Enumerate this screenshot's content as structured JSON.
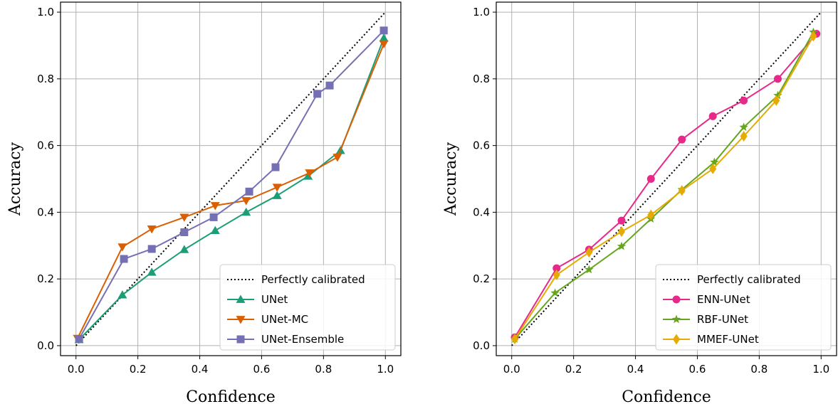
{
  "chart_data": [
    {
      "type": "line",
      "xlabel": "Confidence",
      "ylabel": "Accuracy",
      "xlim": [
        -0.05,
        1.05
      ],
      "ylim": [
        -0.03,
        1.03
      ],
      "xticks": [
        0.0,
        0.2,
        0.4,
        0.6,
        0.8,
        1.0
      ],
      "yticks": [
        0.0,
        0.2,
        0.4,
        0.6,
        0.8,
        1.0
      ],
      "tick_labels": [
        "0.0",
        "0.2",
        "0.4",
        "0.6",
        "0.8",
        "1.0"
      ],
      "grid": true,
      "legend_position": "bottom-right",
      "reference": {
        "name": "Perfectly calibrated",
        "x": [
          0,
          1
        ],
        "y": [
          0,
          1
        ],
        "color": "#000000",
        "style": "dotted"
      },
      "series": [
        {
          "name": "UNet",
          "color": "#1b9e77",
          "marker": "triangle-up",
          "x": [
            0.01,
            0.15,
            0.245,
            0.35,
            0.45,
            0.55,
            0.65,
            0.75,
            0.855,
            0.995
          ],
          "y": [
            0.018,
            0.152,
            0.22,
            0.288,
            0.345,
            0.4,
            0.45,
            0.508,
            0.585,
            0.922
          ]
        },
        {
          "name": "UNet-MC",
          "color": "#d95f02",
          "marker": "triangle-down",
          "x": [
            0.005,
            0.15,
            0.245,
            0.35,
            0.45,
            0.55,
            0.65,
            0.755,
            0.845,
            0.995
          ],
          "y": [
            0.022,
            0.296,
            0.35,
            0.385,
            0.42,
            0.435,
            0.475,
            0.518,
            0.565,
            0.905
          ]
        },
        {
          "name": "UNet-Ensemble",
          "color": "#7570b3",
          "marker": "square",
          "x": [
            0.01,
            0.155,
            0.245,
            0.35,
            0.445,
            0.56,
            0.645,
            0.78,
            0.82,
            0.995
          ],
          "y": [
            0.02,
            0.26,
            0.29,
            0.34,
            0.385,
            0.462,
            0.535,
            0.755,
            0.78,
            0.945
          ]
        }
      ]
    },
    {
      "type": "line",
      "xlabel": "Confidence",
      "ylabel": "Accuracy",
      "xlim": [
        -0.05,
        1.05
      ],
      "ylim": [
        -0.03,
        1.03
      ],
      "xticks": [
        0.0,
        0.2,
        0.4,
        0.6,
        0.8,
        1.0
      ],
      "yticks": [
        0.0,
        0.2,
        0.4,
        0.6,
        0.8,
        1.0
      ],
      "tick_labels": [
        "0.0",
        "0.2",
        "0.4",
        "0.6",
        "0.8",
        "1.0"
      ],
      "grid": true,
      "legend_position": "bottom-right",
      "reference": {
        "name": "Perfectly calibrated",
        "x": [
          0,
          1
        ],
        "y": [
          0,
          1
        ],
        "color": "#000000",
        "style": "dotted"
      },
      "series": [
        {
          "name": "ENN-UNet",
          "color": "#e7298a",
          "marker": "circle",
          "x": [
            0.01,
            0.145,
            0.25,
            0.355,
            0.45,
            0.55,
            0.65,
            0.75,
            0.86,
            0.985
          ],
          "y": [
            0.025,
            0.232,
            0.288,
            0.375,
            0.5,
            0.618,
            0.688,
            0.735,
            0.8,
            0.935
          ]
        },
        {
          "name": "RBF-UNet",
          "color": "#66a61e",
          "marker": "star",
          "x": [
            0.01,
            0.14,
            0.25,
            0.355,
            0.45,
            0.55,
            0.655,
            0.75,
            0.86,
            0.975
          ],
          "y": [
            0.02,
            0.158,
            0.228,
            0.298,
            0.38,
            0.468,
            0.55,
            0.655,
            0.75,
            0.94
          ]
        },
        {
          "name": "MMEF-UNet",
          "color": "#e6ab02",
          "marker": "diamond",
          "x": [
            0.01,
            0.145,
            0.25,
            0.355,
            0.45,
            0.55,
            0.65,
            0.75,
            0.855,
            0.975
          ],
          "y": [
            0.02,
            0.212,
            0.28,
            0.342,
            0.392,
            0.465,
            0.53,
            0.628,
            0.735,
            0.928
          ]
        }
      ]
    }
  ]
}
